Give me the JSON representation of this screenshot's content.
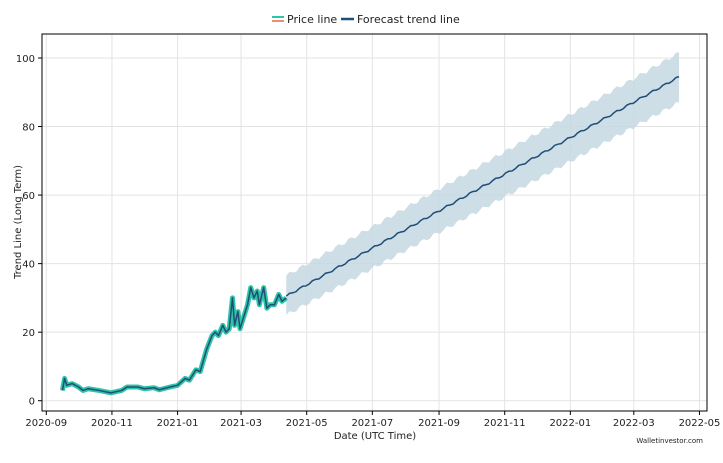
{
  "chart_data": {
    "type": "line",
    "xlabel": "Date (UTC Time)",
    "ylabel": "Trend Line (Long Term)",
    "xlim": [
      "2020-08-28",
      "2022-05-08"
    ],
    "ylim": [
      -3,
      107
    ],
    "yticks": [
      0,
      20,
      40,
      60,
      80,
      100
    ],
    "xticks": [
      "2020-09",
      "2020-11",
      "2021-01",
      "2021-03",
      "2021-05",
      "2021-07",
      "2021-09",
      "2021-11",
      "2022-01",
      "2022-03",
      "2022-05"
    ],
    "grid": true,
    "legend_position": "top-center",
    "watermark": "Walletinvestor.com",
    "series": [
      {
        "name": "Price line",
        "color": "#2ec4a6",
        "points": [
          [
            "2020-09-16",
            3
          ],
          [
            "2020-09-18",
            6.5
          ],
          [
            "2020-09-20",
            4.5
          ],
          [
            "2020-09-25",
            5
          ],
          [
            "2020-10-01",
            4
          ],
          [
            "2020-10-05",
            3
          ],
          [
            "2020-10-10",
            3.5
          ],
          [
            "2020-10-20",
            3
          ],
          [
            "2020-10-31",
            2.3
          ],
          [
            "2020-11-10",
            3
          ],
          [
            "2020-11-15",
            4
          ],
          [
            "2020-11-25",
            4
          ],
          [
            "2020-12-01",
            3.5
          ],
          [
            "2020-12-10",
            3.8
          ],
          [
            "2020-12-15",
            3.2
          ],
          [
            "2020-12-25",
            4
          ],
          [
            "2021-01-01",
            4.5
          ],
          [
            "2021-01-08",
            6.5
          ],
          [
            "2021-01-12",
            6
          ],
          [
            "2021-01-18",
            9
          ],
          [
            "2021-01-22",
            8.5
          ],
          [
            "2021-01-28",
            15
          ],
          [
            "2021-02-02",
            19
          ],
          [
            "2021-02-05",
            20
          ],
          [
            "2021-02-08",
            19
          ],
          [
            "2021-02-12",
            22
          ],
          [
            "2021-02-15",
            20
          ],
          [
            "2021-02-18",
            21
          ],
          [
            "2021-02-21",
            30
          ],
          [
            "2021-02-23",
            22
          ],
          [
            "2021-02-26",
            26
          ],
          [
            "2021-02-28",
            21
          ],
          [
            "2021-03-03",
            24
          ],
          [
            "2021-03-07",
            28
          ],
          [
            "2021-03-10",
            33
          ],
          [
            "2021-03-13",
            30
          ],
          [
            "2021-03-16",
            32
          ],
          [
            "2021-03-18",
            28
          ],
          [
            "2021-03-22",
            33
          ],
          [
            "2021-03-25",
            27
          ],
          [
            "2021-03-28",
            28
          ],
          [
            "2021-04-01",
            28
          ],
          [
            "2021-04-05",
            31
          ],
          [
            "2021-04-08",
            29
          ],
          [
            "2021-04-12",
            30
          ]
        ]
      },
      {
        "name": "Forecast trend line",
        "color": "#1f4e79",
        "points": [
          [
            "2021-04-12",
            30.5
          ],
          [
            "2022-04-12",
            94.5
          ]
        ],
        "band_lower": [
          [
            "2021-04-12",
            25
          ],
          [
            "2022-04-12",
            87
          ]
        ],
        "band_upper": [
          [
            "2021-04-12",
            36.5
          ],
          [
            "2022-04-12",
            101.5
          ]
        ],
        "band_color": "#c5d8e2"
      }
    ]
  }
}
